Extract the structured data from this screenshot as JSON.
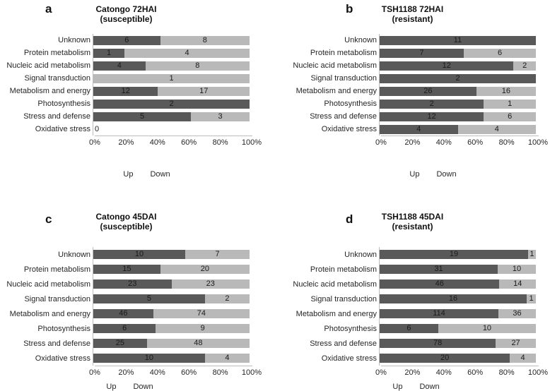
{
  "colors": {
    "up_fill": "#595959",
    "down_fill": "#b9b9b9",
    "axis_line": "#bdbdbd",
    "text": "#262626"
  },
  "chart_data": [
    {
      "type": "bar",
      "orientation": "horizontal",
      "stacked": "percent",
      "panel_letter": "a",
      "title": "Catongo 72HAI",
      "subtitle": "(susceptible)",
      "categories": [
        "Unknown",
        "Protein metabolism",
        "Nucleic acid metabolism",
        "Signal transduction",
        "Metabolism and energy",
        "Photosynthesis",
        "Stress and defense",
        "Oxidative stress"
      ],
      "series": [
        {
          "name": "Up",
          "values": [
            6,
            1,
            4,
            0,
            12,
            2,
            5,
            0
          ]
        },
        {
          "name": "Down",
          "values": [
            8,
            4,
            8,
            1,
            17,
            0,
            3,
            0
          ]
        }
      ],
      "x_ticks": [
        "0%",
        "20%",
        "40%",
        "60%",
        "80%",
        "100%"
      ],
      "xlim": [
        0,
        100
      ],
      "legend_position": "bottom",
      "grid": false
    },
    {
      "type": "bar",
      "orientation": "horizontal",
      "stacked": "percent",
      "panel_letter": "b",
      "title": "TSH1188 72HAI",
      "subtitle": "(resistant)",
      "categories": [
        "Unknown",
        "Protein metabolism",
        "Nucleic acid metabolism",
        "Signal transduction",
        "Metabolism and energy",
        "Photosynthesis",
        "Stress and defense",
        "Oxidative stress"
      ],
      "series": [
        {
          "name": "Up",
          "values": [
            11,
            7,
            12,
            2,
            26,
            2,
            12,
            4
          ]
        },
        {
          "name": "Down",
          "values": [
            0,
            6,
            2,
            0,
            16,
            1,
            6,
            4
          ]
        }
      ],
      "x_ticks": [
        "0%",
        "20%",
        "40%",
        "60%",
        "80%",
        "100%"
      ],
      "xlim": [
        0,
        100
      ],
      "legend_position": "bottom",
      "grid": false
    },
    {
      "type": "bar",
      "orientation": "horizontal",
      "stacked": "percent",
      "panel_letter": "c",
      "title": "Catongo 45DAI",
      "subtitle": "(susceptible)",
      "categories": [
        "Unknown",
        "Protein metabolism",
        "Nucleic acid metabolism",
        "Signal transduction",
        "Metabolism and energy",
        "Photosynthesis",
        "Stress and defense",
        "Oxidative stress"
      ],
      "series": [
        {
          "name": "Up",
          "values": [
            10,
            15,
            23,
            5,
            46,
            6,
            25,
            10
          ]
        },
        {
          "name": "Down",
          "values": [
            7,
            20,
            23,
            2,
            74,
            9,
            48,
            4
          ]
        }
      ],
      "x_ticks": [
        "0%",
        "20%",
        "40%",
        "60%",
        "80%",
        "100%"
      ],
      "xlim": [
        0,
        100
      ],
      "legend_position": "bottom",
      "grid": false
    },
    {
      "type": "bar",
      "orientation": "horizontal",
      "stacked": "percent",
      "panel_letter": "d",
      "title": "TSH1188 45DAI",
      "subtitle": "(resistant)",
      "categories": [
        "Unknown",
        "Protein metabolism",
        "Nucleic acid metabolism",
        "Signal transduction",
        "Metabolism and energy",
        "Photosynthesis",
        "Stress and defense",
        "Oxidative stress"
      ],
      "series": [
        {
          "name": "Up",
          "values": [
            19,
            31,
            46,
            16,
            114,
            6,
            78,
            20
          ]
        },
        {
          "name": "Down",
          "values": [
            1,
            10,
            14,
            1,
            36,
            10,
            27,
            4
          ]
        }
      ],
      "x_ticks": [
        "0%",
        "20%",
        "40%",
        "60%",
        "80%",
        "100%"
      ],
      "xlim": [
        0,
        100
      ],
      "legend_position": "bottom",
      "grid": false
    }
  ]
}
